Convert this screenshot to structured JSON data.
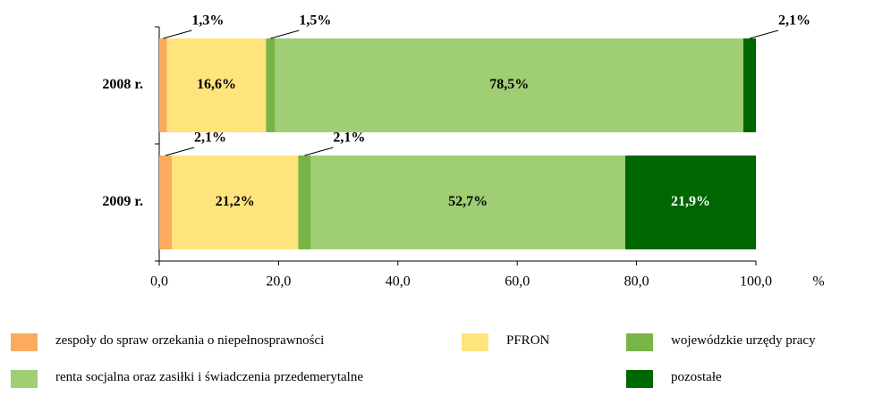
{
  "chart_data": {
    "type": "stacked-barh",
    "categories": [
      "2008 r.",
      "2009 r."
    ],
    "series": [
      {
        "name": "zespoły do spraw orzekania o niepełnosprawności",
        "color": "#fbab5e",
        "values": [
          1.3,
          2.1
        ],
        "value_labels": [
          "1,3%",
          "2,1%"
        ]
      },
      {
        "name": "PFRON",
        "color": "#ffe37d",
        "values": [
          16.6,
          21.2
        ],
        "value_labels": [
          "16,6%",
          "21,2%"
        ]
      },
      {
        "name": "wojewódzkie urzędy pracy",
        "color": "#79b446",
        "values": [
          1.5,
          2.1
        ],
        "value_labels": [
          "1,5%",
          "2,1%"
        ]
      },
      {
        "name": "renta socjalna oraz zasiłki i świadczenia przedemerytalne",
        "color": "#9fce74",
        "values": [
          78.5,
          52.7
        ],
        "value_labels": [
          "78,5%",
          "52,7%"
        ]
      },
      {
        "name": "pozostałe",
        "color": "#006600",
        "values": [
          2.1,
          21.9
        ],
        "value_labels": [
          "2,1%",
          "21,9%"
        ]
      }
    ],
    "xlim": [
      0,
      100
    ],
    "xticks": [
      {
        "value": 0,
        "label": "0,0"
      },
      {
        "value": 20,
        "label": "20,0"
      },
      {
        "value": 40,
        "label": "40,0"
      },
      {
        "value": 60,
        "label": "60,0"
      },
      {
        "value": 80,
        "label": "80,0"
      },
      {
        "value": 100,
        "label": "100,0"
      }
    ],
    "xlabel": "%"
  }
}
